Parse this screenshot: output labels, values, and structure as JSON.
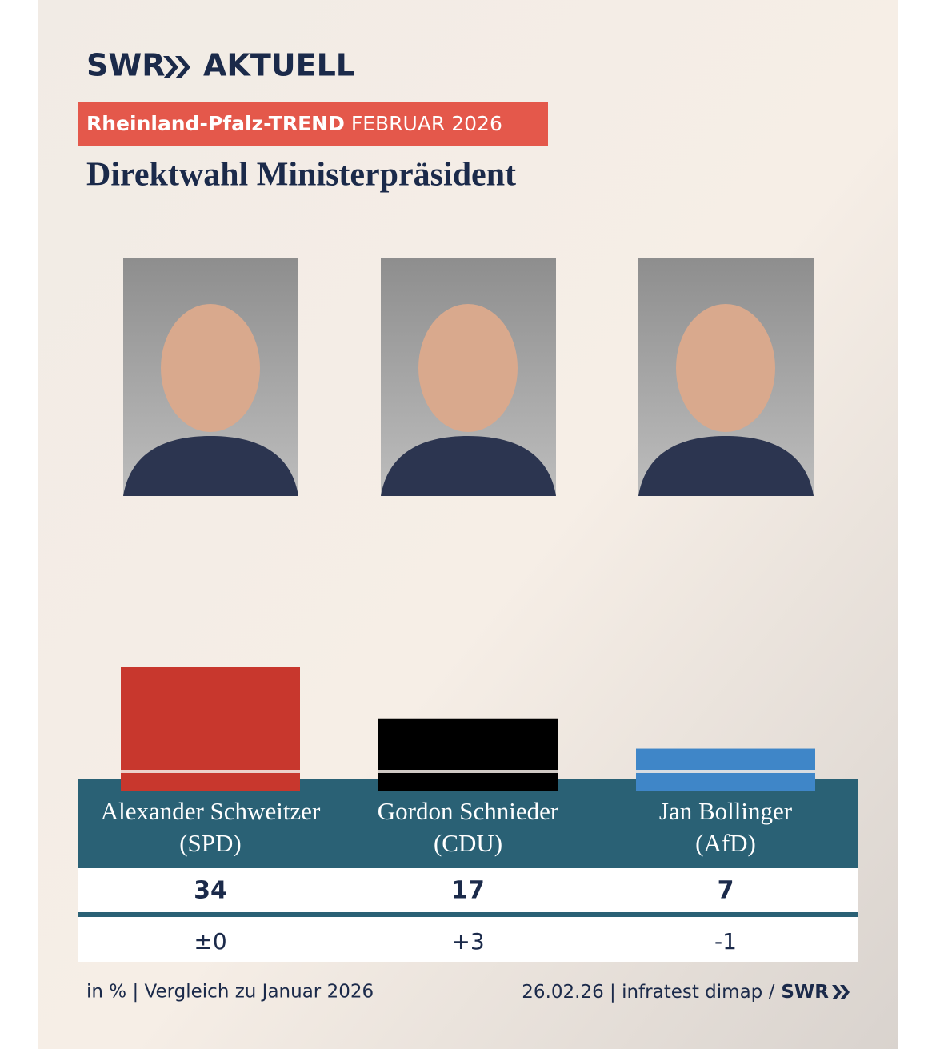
{
  "chart_data": {
    "type": "bar",
    "brand": "SWR",
    "brand_suffix": "AKTUELL",
    "banner": "Rheinland-Pfalz-TREND",
    "banner_date": "FEBRUAR 2026",
    "title": "Direktwahl Ministerpräsident",
    "categories": [
      "Alexander Schweitzer",
      "Gordon Schnieder",
      "Jan Bollinger"
    ],
    "parties": [
      "(SPD)",
      "(CDU)",
      "(AfD)"
    ],
    "values": [
      34,
      17,
      7
    ],
    "colors": [
      "#c8372d",
      "#000000",
      "#3f86c8"
    ],
    "changes": [
      0,
      3,
      -1
    ],
    "change_labels": [
      "±0",
      "+3",
      "-1"
    ],
    "footer_left": "in % | Vergleich zu Januar 2026",
    "footer_right": "26.02.26 | infratest dimap /",
    "footer_brand": "SWR"
  }
}
